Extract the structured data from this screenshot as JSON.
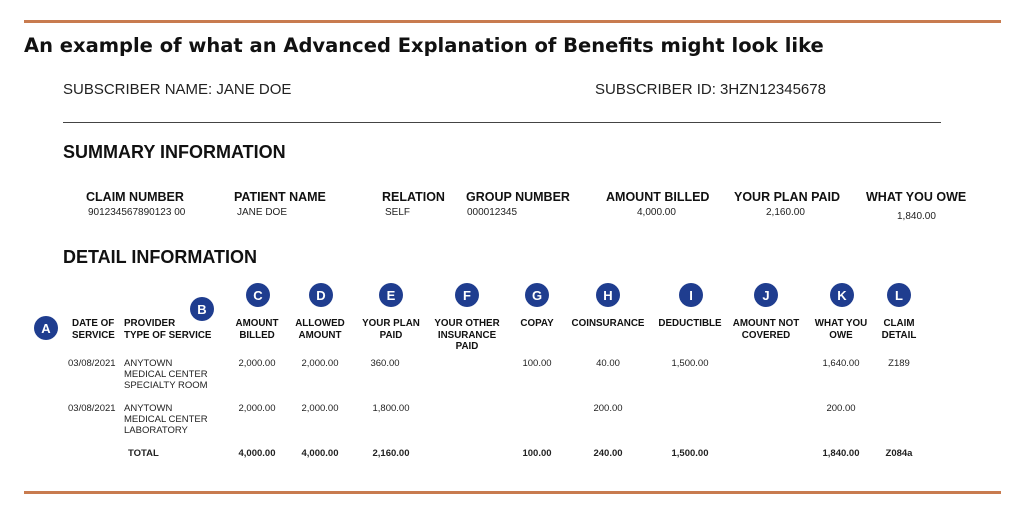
{
  "headline": "An example of what an Advanced Explanation of Benefits might look like",
  "subscriber": {
    "name_label": "SUBSCRIBER NAME: JANE DOE",
    "id_label": "SUBSCRIBER ID: 3HZN12345678"
  },
  "summary": {
    "title": "SUMMARY INFORMATION",
    "headers": [
      "CLAIM NUMBER",
      "PATIENT NAME",
      "RELATION",
      "GROUP NUMBER",
      "AMOUNT BILLED",
      "YOUR PLAN PAID",
      "WHAT YOU OWE"
    ],
    "values": [
      "901234567890123 00",
      "JANE DOE",
      "SELF",
      "000012345",
      "4,000.00",
      "2,160.00",
      "1,840.00"
    ]
  },
  "detail": {
    "title": "DETAIL INFORMATION",
    "badges": [
      "A",
      "B",
      "C",
      "D",
      "E",
      "F",
      "G",
      "H",
      "I",
      "J",
      "K",
      "L"
    ],
    "columns": {
      "date": "DATE OF\nSERVICE",
      "provider": "PROVIDER\nTYPE OF SERVICE",
      "amount_billed": "AMOUNT\nBILLED",
      "allowed_amount": "ALLOWED\nAMOUNT",
      "plan_paid": "YOUR PLAN\nPAID",
      "other_insurance": "YOUR OTHER\nINSURANCE\nPAID",
      "copay": "COPAY",
      "coinsurance": "COINSURANCE",
      "deductible": "DEDUCTIBLE",
      "not_covered": "AMOUNT NOT\nCOVERED",
      "what_you_owe": "WHAT YOU\nOWE",
      "claim_detail": "CLAIM\nDETAIL"
    },
    "rows": [
      {
        "date": "03/08/2021",
        "provider": "ANYTOWN\nMEDICAL CENTER\nSPECIALTY ROOM",
        "amount_billed": "2,000.00",
        "allowed_amount": "2,000.00",
        "plan_paid": "360.00",
        "copay": "100.00",
        "coinsurance": "40.00",
        "deductible": "1,500.00",
        "what_you_owe": "1,640.00",
        "claim_detail": "Z189"
      },
      {
        "date": "03/08/2021",
        "provider": "ANYTOWN\nMEDICAL CENTER\nLABORATORY",
        "amount_billed": "2,000.00",
        "allowed_amount": "2,000.00",
        "plan_paid": "1,800.00",
        "coinsurance": "200.00",
        "what_you_owe": "200.00"
      }
    ],
    "total": {
      "label": "TOTAL",
      "amount_billed": "4,000.00",
      "allowed_amount": "4,000.00",
      "plan_paid": "2,160.00",
      "copay": "100.00",
      "coinsurance": "240.00",
      "deductible": "1,500.00",
      "what_you_owe": "1,840.00",
      "claim_detail": "Z084a"
    }
  },
  "colors": {
    "rule": "#c87b4f",
    "badge": "#1f3d8f"
  }
}
